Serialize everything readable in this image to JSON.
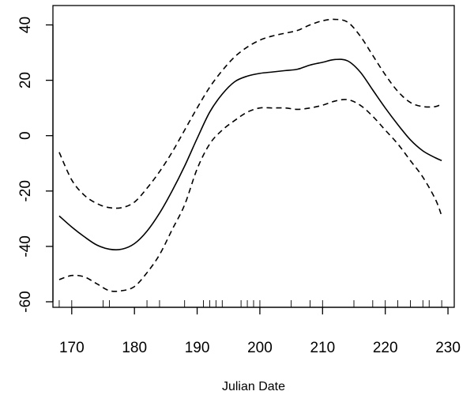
{
  "chart_data": {
    "type": "line",
    "title": "",
    "xlabel": "Julian Date",
    "ylabel": "",
    "xlim": [
      167,
      231
    ],
    "ylim": [
      -62,
      47
    ],
    "x_ticks": [
      170,
      180,
      190,
      200,
      210,
      220,
      230
    ],
    "y_ticks": [
      -60,
      -40,
      -20,
      0,
      20,
      40
    ],
    "series": [
      {
        "role": "fit",
        "style": "solid",
        "x": [
          168,
          170,
          172,
          174,
          176,
          178,
          180,
          182,
          184,
          186,
          188,
          190,
          192,
          194,
          196,
          198,
          200,
          202,
          204,
          206,
          208,
          210,
          212,
          214,
          216,
          218,
          220,
          222,
          224,
          226,
          228,
          229
        ],
        "y": [
          -29,
          -33,
          -36.5,
          -39.5,
          -41,
          -41,
          -39,
          -34.5,
          -28,
          -20,
          -11,
          -1,
          8.5,
          15,
          19.5,
          21.5,
          22.5,
          23,
          23.5,
          24,
          25.5,
          26.5,
          27.5,
          27,
          23,
          16.5,
          10,
          4,
          -1.5,
          -5.5,
          -8,
          -9
        ]
      },
      {
        "role": "upper confidence band",
        "style": "dashed",
        "x": [
          168,
          170,
          172,
          174,
          176,
          178,
          180,
          182,
          184,
          186,
          188,
          190,
          192,
          194,
          196,
          198,
          200,
          202,
          204,
          206,
          208,
          210,
          212,
          214,
          216,
          218,
          220,
          222,
          224,
          226,
          228,
          229
        ],
        "y": [
          -6,
          -16,
          -21.5,
          -24.5,
          -26,
          -26,
          -24,
          -19,
          -13,
          -6,
          2,
          10,
          17.5,
          23.5,
          28.5,
          32,
          34.5,
          36,
          37,
          38,
          40,
          41.5,
          42,
          41,
          36,
          29,
          22,
          16,
          12,
          10.5,
          10.5,
          11.5
        ]
      },
      {
        "role": "lower confidence band",
        "style": "dashed",
        "x": [
          168,
          170,
          172,
          174,
          176,
          178,
          180,
          182,
          184,
          186,
          188,
          190,
          192,
          194,
          196,
          198,
          200,
          202,
          204,
          206,
          208,
          210,
          212,
          214,
          216,
          218,
          220,
          222,
          224,
          226,
          228,
          229
        ],
        "y": [
          -52,
          -50.5,
          -51,
          -53.5,
          -56,
          -56,
          -54.5,
          -49.5,
          -43,
          -34,
          -25,
          -12,
          -3,
          2,
          5.5,
          8.5,
          10,
          10,
          10,
          9.5,
          10,
          11,
          12.5,
          13,
          11,
          7,
          2,
          -3,
          -9,
          -15,
          -23,
          -29
        ]
      }
    ],
    "rug": [
      168,
      170,
      175,
      176,
      182,
      184,
      188,
      191,
      192,
      193,
      194,
      197,
      198,
      199,
      200,
      205,
      208,
      210,
      215,
      218,
      220,
      222,
      224,
      226,
      227,
      229
    ],
    "grid": false,
    "legend": "none",
    "colors": {
      "line": "#000000",
      "background": "#ffffff"
    }
  }
}
